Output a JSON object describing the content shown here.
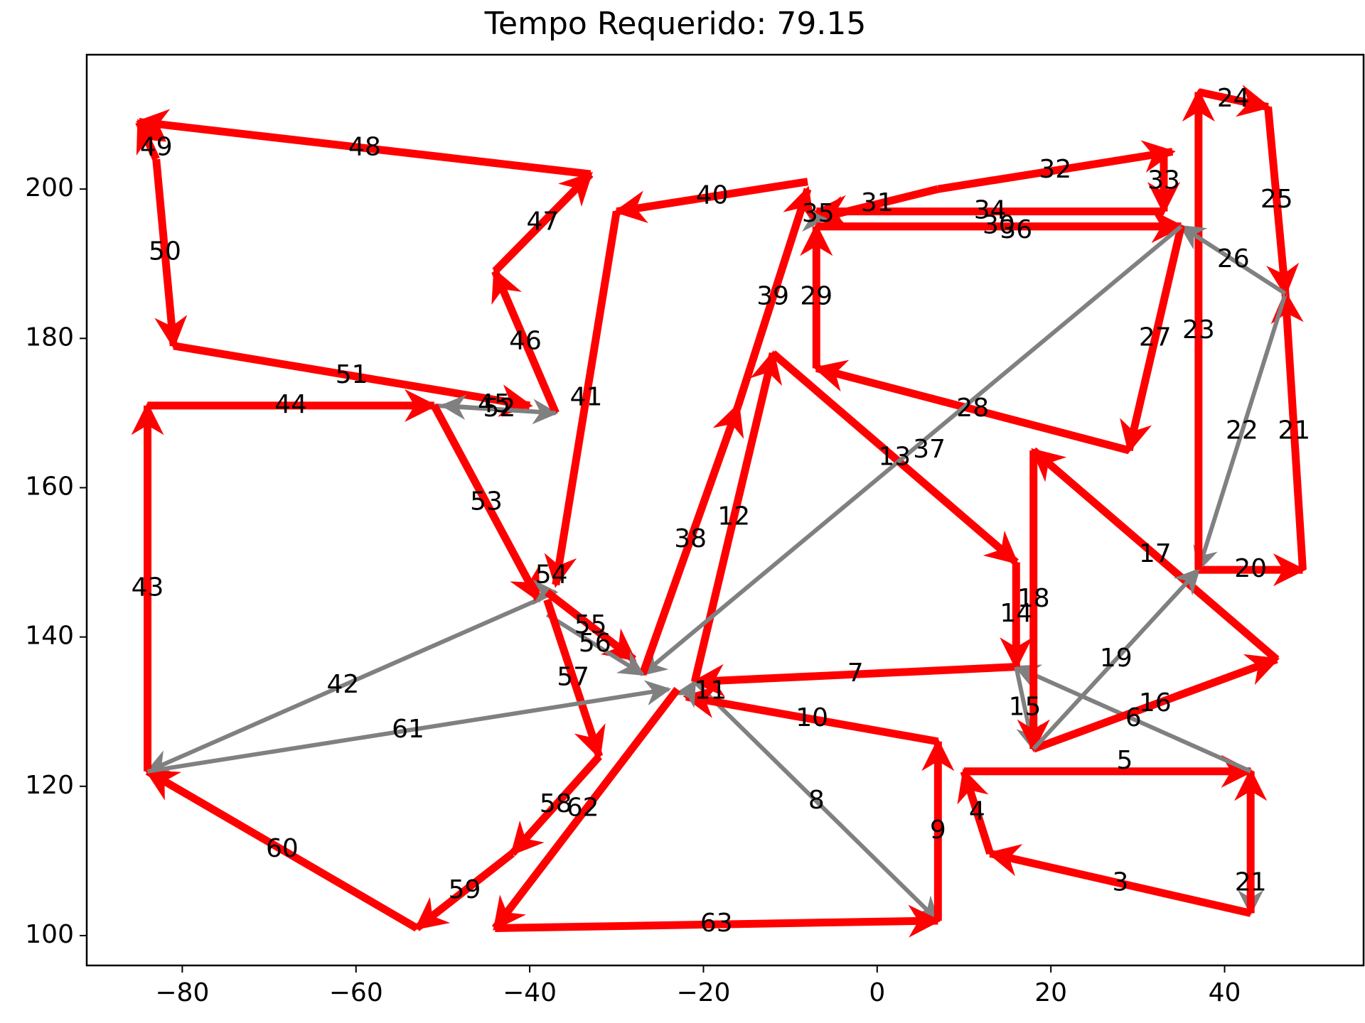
{
  "chart_data": {
    "type": "line",
    "title": "Tempo Requerido: 79.15",
    "xlabel": "",
    "ylabel": "",
    "xlim": [
      -91,
      56
    ],
    "ylim": [
      96,
      218
    ],
    "xticks": [
      -80,
      -60,
      -40,
      -20,
      0,
      20,
      40
    ],
    "yticks": [
      100,
      120,
      140,
      160,
      180,
      200
    ],
    "grid": false,
    "colors": {
      "traveled": "#ff0000",
      "transfer": "#808080"
    },
    "segments": [
      {
        "label": "1",
        "from": [
          43,
          122
        ],
        "to": [
          43,
          103
        ],
        "kind": "transfer"
      },
      {
        "label": "2",
        "from": [
          43,
          103
        ],
        "to": [
          43,
          122
        ],
        "kind": "traveled"
      },
      {
        "label": "3",
        "from": [
          43,
          103
        ],
        "to": [
          13,
          111
        ],
        "kind": "traveled"
      },
      {
        "label": "4",
        "from": [
          13,
          111
        ],
        "to": [
          10,
          122
        ],
        "kind": "traveled"
      },
      {
        "label": "5",
        "from": [
          10,
          122
        ],
        "to": [
          43,
          122
        ],
        "kind": "traveled"
      },
      {
        "label": "6",
        "from": [
          43,
          122
        ],
        "to": [
          16,
          136
        ],
        "kind": "transfer"
      },
      {
        "label": "7",
        "from": [
          16,
          136
        ],
        "to": [
          -21,
          134
        ],
        "kind": "traveled"
      },
      {
        "label": "8",
        "from": [
          -21,
          134
        ],
        "to": [
          7,
          102
        ],
        "kind": "transfer"
      },
      {
        "label": "9",
        "from": [
          7,
          102
        ],
        "to": [
          7,
          126
        ],
        "kind": "traveled"
      },
      {
        "label": "10",
        "from": [
          7,
          126
        ],
        "to": [
          -22,
          132
        ],
        "kind": "traveled"
      },
      {
        "label": "11",
        "from": [
          -22,
          132
        ],
        "to": [
          -21,
          134
        ],
        "kind": "transfer"
      },
      {
        "label": "12",
        "from": [
          -21,
          134
        ],
        "to": [
          -12,
          178
        ],
        "kind": "traveled"
      },
      {
        "label": "13",
        "from": [
          -12,
          178
        ],
        "to": [
          16,
          150
        ],
        "kind": "traveled"
      },
      {
        "label": "14",
        "from": [
          16,
          150
        ],
        "to": [
          16,
          136
        ],
        "kind": "traveled"
      },
      {
        "label": "15",
        "from": [
          16,
          136
        ],
        "to": [
          18,
          125
        ],
        "kind": "transfer"
      },
      {
        "label": "16",
        "from": [
          18,
          125
        ],
        "to": [
          46,
          137
        ],
        "kind": "traveled"
      },
      {
        "label": "17",
        "from": [
          46,
          137
        ],
        "to": [
          18,
          165
        ],
        "kind": "traveled"
      },
      {
        "label": "18",
        "from": [
          18,
          165
        ],
        "to": [
          18,
          125
        ],
        "kind": "traveled"
      },
      {
        "label": "19",
        "from": [
          18,
          125
        ],
        "to": [
          37,
          149
        ],
        "kind": "transfer"
      },
      {
        "label": "20",
        "from": [
          37,
          149
        ],
        "to": [
          49,
          149
        ],
        "kind": "traveled"
      },
      {
        "label": "21",
        "from": [
          49,
          149
        ],
        "to": [
          47,
          186
        ],
        "kind": "traveled"
      },
      {
        "label": "22",
        "from": [
          47,
          186
        ],
        "to": [
          37,
          149
        ],
        "kind": "transfer"
      },
      {
        "label": "23",
        "from": [
          37,
          149
        ],
        "to": [
          37,
          213
        ],
        "kind": "traveled"
      },
      {
        "label": "24",
        "from": [
          37,
          213
        ],
        "to": [
          45,
          211
        ],
        "kind": "traveled"
      },
      {
        "label": "25",
        "from": [
          45,
          211
        ],
        "to": [
          47,
          186
        ],
        "kind": "traveled"
      },
      {
        "label": "26",
        "from": [
          47,
          186
        ],
        "to": [
          35,
          195
        ],
        "kind": "transfer"
      },
      {
        "label": "27",
        "from": [
          35,
          195
        ],
        "to": [
          29,
          165
        ],
        "kind": "traveled"
      },
      {
        "label": "28",
        "from": [
          29,
          165
        ],
        "to": [
          -7,
          176
        ],
        "kind": "traveled"
      },
      {
        "label": "29",
        "from": [
          -7,
          176
        ],
        "to": [
          -7,
          195
        ],
        "kind": "traveled"
      },
      {
        "label": "30",
        "from": [
          -7,
          195
        ],
        "to": [
          35,
          195
        ],
        "kind": "traveled"
      },
      {
        "label": "31",
        "from": [
          7,
          200
        ],
        "to": [
          -7,
          196
        ],
        "kind": "traveled"
      },
      {
        "label": "32",
        "from": [
          7,
          200
        ],
        "to": [
          34,
          205
        ],
        "kind": "traveled"
      },
      {
        "label": "33",
        "from": [
          33,
          205
        ],
        "to": [
          33,
          197
        ],
        "kind": "traveled"
      },
      {
        "label": "34",
        "from": [
          33,
          197
        ],
        "to": [
          -7,
          197
        ],
        "kind": "traveled"
      },
      {
        "label": "35",
        "from": [
          -7,
          196
        ],
        "to": [
          -6,
          196
        ],
        "kind": "transfer"
      },
      {
        "label": "36",
        "from": [
          -7,
          195
        ],
        "to": [
          35,
          195
        ],
        "kind": "traveled"
      },
      {
        "label": "37",
        "from": [
          35,
          195
        ],
        "to": [
          -27,
          135
        ],
        "kind": "transfer"
      },
      {
        "label": "38",
        "from": [
          -27,
          135
        ],
        "to": [
          -16,
          171
        ],
        "kind": "traveled"
      },
      {
        "label": "39",
        "from": [
          -16,
          171
        ],
        "to": [
          -8,
          200
        ],
        "kind": "traveled"
      },
      {
        "label": "40",
        "from": [
          -8,
          201
        ],
        "to": [
          -30,
          197
        ],
        "kind": "traveled"
      },
      {
        "label": "41",
        "from": [
          -30,
          197
        ],
        "to": [
          -37,
          147
        ],
        "kind": "traveled"
      },
      {
        "label": "42",
        "from": [
          -39,
          145
        ],
        "to": [
          -84,
          122
        ],
        "kind": "transfer"
      },
      {
        "label": "43",
        "from": [
          -84,
          122
        ],
        "to": [
          -84,
          171
        ],
        "kind": "traveled"
      },
      {
        "label": "44",
        "from": [
          -84,
          171
        ],
        "to": [
          -51,
          171
        ],
        "kind": "traveled"
      },
      {
        "label": "45",
        "from": [
          -51,
          171
        ],
        "to": [
          -37,
          170
        ],
        "kind": "transfer"
      },
      {
        "label": "46",
        "from": [
          -37,
          170
        ],
        "to": [
          -44,
          189
        ],
        "kind": "traveled"
      },
      {
        "label": "47",
        "from": [
          -44,
          189
        ],
        "to": [
          -33,
          202
        ],
        "kind": "traveled"
      },
      {
        "label": "48",
        "from": [
          -33,
          202
        ],
        "to": [
          -85,
          209
        ],
        "kind": "traveled"
      },
      {
        "label": "49",
        "from": [
          -83,
          204
        ],
        "to": [
          -85,
          209
        ],
        "kind": "traveled"
      },
      {
        "label": "50",
        "from": [
          -83,
          204
        ],
        "to": [
          -81,
          179
        ],
        "kind": "traveled"
      },
      {
        "label": "51",
        "from": [
          -81,
          179
        ],
        "to": [
          -40,
          171
        ],
        "kind": "traveled"
      },
      {
        "label": "52",
        "from": [
          -37,
          170
        ],
        "to": [
          -50,
          171
        ],
        "kind": "transfer"
      },
      {
        "label": "53",
        "from": [
          -51,
          171
        ],
        "to": [
          -39,
          145
        ],
        "kind": "traveled"
      },
      {
        "label": "54",
        "from": [
          -38,
          146
        ],
        "to": [
          -37,
          146
        ],
        "kind": "transfer"
      },
      {
        "label": "55",
        "from": [
          -38,
          146
        ],
        "to": [
          -28,
          137
        ],
        "kind": "traveled"
      },
      {
        "label": "56",
        "from": [
          -38,
          143
        ],
        "to": [
          -27,
          135
        ],
        "kind": "transfer"
      },
      {
        "label": "57",
        "from": [
          -38,
          145
        ],
        "to": [
          -32,
          124
        ],
        "kind": "traveled"
      },
      {
        "label": "58",
        "from": [
          -32,
          124
        ],
        "to": [
          -42,
          111
        ],
        "kind": "traveled"
      },
      {
        "label": "59",
        "from": [
          -42,
          111
        ],
        "to": [
          -53,
          101
        ],
        "kind": "traveled"
      },
      {
        "label": "60",
        "from": [
          -53,
          101
        ],
        "to": [
          -84,
          122
        ],
        "kind": "traveled"
      },
      {
        "label": "61",
        "from": [
          -84,
          122
        ],
        "to": [
          -24,
          133
        ],
        "kind": "transfer"
      },
      {
        "label": "62",
        "from": [
          -23,
          133
        ],
        "to": [
          -44,
          101
        ],
        "kind": "traveled"
      },
      {
        "label": "63",
        "from": [
          -44,
          101
        ],
        "to": [
          7,
          102
        ],
        "kind": "traveled"
      }
    ],
    "label_offsets": {
      "1": [
        0.9,
        -5.5
      ],
      "2": [
        -0.9,
        -5.5
      ],
      "5": [
        2,
        1.3
      ],
      "11": [
        2.3,
        -0.3
      ],
      "31": [
        0,
        0
      ],
      "35": [
        -0.3,
        0.6
      ],
      "36": [
        2,
        -0.6
      ],
      "37": [
        2,
        0
      ],
      "45": [
        -0.1,
        0.6
      ],
      "49": [
        1,
        -1
      ],
      "52": [
        0,
        0
      ],
      "54": [
        0,
        2.2
      ],
      "62": [
        -0.4,
        0
      ]
    }
  }
}
